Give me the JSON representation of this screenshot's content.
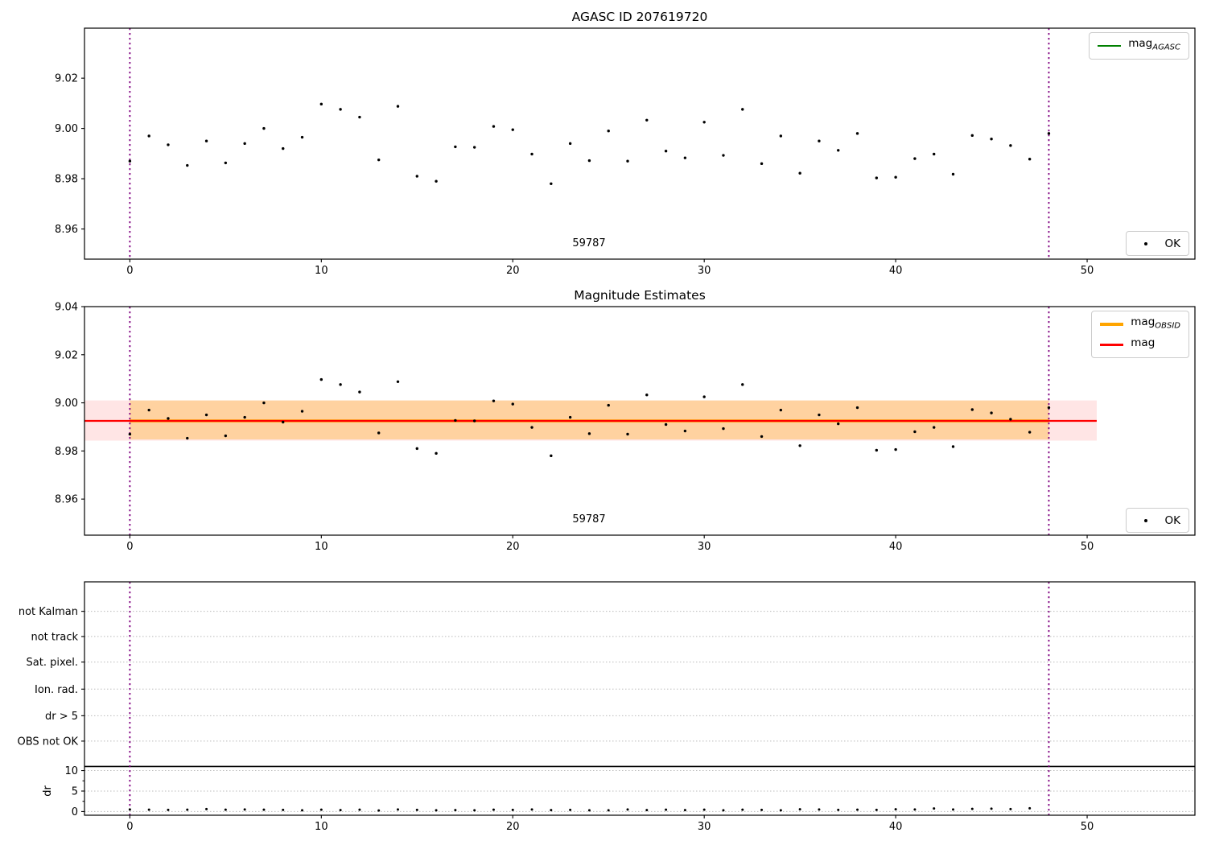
{
  "figure": {
    "background": "#ffffff"
  },
  "colors": {
    "mag_agasc_line": "#008000",
    "mag_obsid_line": "#ffa500",
    "mag_line": "#ff0000",
    "obsid_boundary_line": "#800080",
    "marker": "#000000",
    "mag_band": "rgba(255,0,0,0.10)",
    "obsid_band": "rgba(255,165,0,0.30)",
    "grid": "#bbbbbb",
    "separator": "#000000"
  },
  "chart_data": [
    {
      "id": "agasc-mag-panel",
      "type": "scatter",
      "title": "AGASC ID 207619720",
      "xlim": [
        -2.37,
        55.63
      ],
      "ylim": [
        8.948,
        9.0399
      ],
      "xticks": [
        0,
        10,
        20,
        30,
        40,
        50
      ],
      "xtick_labels": [
        "0",
        "10",
        "20",
        "30",
        "40",
        "50"
      ],
      "yticks": [
        9.02,
        9.0,
        8.98,
        8.96
      ],
      "ytick_labels": [
        "9.02",
        "9.00",
        "8.98",
        "8.96"
      ],
      "obsid_boundaries": [
        0,
        48
      ],
      "annotation": {
        "text": "59787",
        "x": 24
      },
      "legend": [
        {
          "label": "mag",
          "sub": "AGASC",
          "color": "#008000"
        }
      ],
      "ok_label": "OK",
      "x": [
        0,
        1,
        2,
        3,
        4,
        5,
        6,
        7,
        8,
        9,
        10,
        11,
        12,
        13,
        14,
        15,
        16,
        17,
        18,
        19,
        20,
        21,
        22,
        23,
        24,
        25,
        26,
        27,
        28,
        29,
        30,
        31,
        32,
        33,
        34,
        35,
        36,
        37,
        38,
        39,
        40,
        41,
        42,
        43,
        44,
        45,
        46,
        47,
        48
      ],
      "mag": [
        8.987,
        8.997,
        8.9935,
        8.9853,
        8.995,
        8.9863,
        8.994,
        9.0,
        8.992,
        8.9965,
        9.0097,
        9.0076,
        9.0045,
        8.9875,
        9.0088,
        8.981,
        8.979,
        8.9927,
        8.9925,
        9.0008,
        8.9995,
        8.9898,
        8.978,
        8.994,
        8.9872,
        8.999,
        8.987,
        9.0033,
        8.991,
        8.9883,
        9.0025,
        8.9893,
        9.0076,
        8.986,
        8.997,
        8.9822,
        8.995,
        8.9913,
        8.998,
        8.9803,
        8.9806,
        8.988,
        8.9898,
        8.9818,
        8.9972,
        8.9958,
        8.9932,
        8.9878,
        8.998
      ]
    },
    {
      "id": "magnitude-estimates-panel",
      "type": "scatter",
      "title": "Magnitude Estimates",
      "xlim": [
        -2.37,
        55.63
      ],
      "ylim": [
        8.945,
        9.04
      ],
      "xticks": [
        0,
        10,
        20,
        30,
        40,
        50
      ],
      "xtick_labels": [
        "0",
        "10",
        "20",
        "30",
        "40",
        "50"
      ],
      "yticks": [
        9.04,
        9.02,
        9.0,
        8.98,
        8.96
      ],
      "ytick_labels": [
        "9.04",
        "9.02",
        "9.00",
        "8.98",
        "8.96"
      ],
      "obsid_boundaries": [
        0,
        48
      ],
      "bands": [
        {
          "name": "mag-uncertainty-band",
          "x0": -2.37,
          "x1": 50.5,
          "y0": 8.9843,
          "y1": 9.001,
          "color_key": "mag_band"
        },
        {
          "name": "obsid-uncertainty-band",
          "x0": 0,
          "x1": 48,
          "y0": 8.9848,
          "y1": 9.001,
          "color_key": "obsid_band"
        }
      ],
      "hlines": [
        {
          "name": "mag-obsid-line",
          "y": 8.9925,
          "x0": 0,
          "x1": 48,
          "color_key": "mag_obsid_line",
          "width": 3.4
        },
        {
          "name": "mag-line",
          "y": 8.9925,
          "x0": -2.37,
          "x1": 50.5,
          "color_key": "mag_line",
          "width": 2.2
        }
      ],
      "annotation": {
        "text": "59787",
        "x": 24
      },
      "legend": [
        {
          "label": "mag",
          "sub": "OBSID",
          "color": "#ffa500"
        },
        {
          "label": "mag",
          "sub": "",
          "color": "#ff0000"
        }
      ],
      "ok_label": "OK",
      "x": [
        0,
        1,
        2,
        3,
        4,
        5,
        6,
        7,
        8,
        9,
        10,
        11,
        12,
        13,
        14,
        15,
        16,
        17,
        18,
        19,
        20,
        21,
        22,
        23,
        24,
        25,
        26,
        27,
        28,
        29,
        30,
        31,
        32,
        33,
        34,
        35,
        36,
        37,
        38,
        39,
        40,
        41,
        42,
        43,
        44,
        45,
        46,
        47,
        48
      ],
      "mag": [
        8.987,
        8.997,
        8.9935,
        8.9853,
        8.995,
        8.9863,
        8.994,
        9.0,
        8.992,
        8.9965,
        9.0097,
        9.0076,
        9.0045,
        8.9875,
        9.0088,
        8.981,
        8.979,
        8.9927,
        8.9925,
        9.0008,
        8.9995,
        8.9898,
        8.978,
        8.994,
        8.9872,
        8.999,
        8.987,
        9.0033,
        8.991,
        8.9883,
        9.0025,
        8.9893,
        9.0076,
        8.986,
        8.997,
        8.9822,
        8.995,
        8.9913,
        8.998,
        8.9803,
        8.9806,
        8.988,
        8.9898,
        8.9818,
        8.9972,
        8.9958,
        8.9932,
        8.9878,
        8.998
      ]
    },
    {
      "id": "flags-dr-panel",
      "type": "flags",
      "xlim": [
        -2.37,
        55.63
      ],
      "ylim": [
        -0.9,
        56.1
      ],
      "xticks": [
        0,
        10,
        20,
        30,
        40,
        50
      ],
      "xtick_labels": [
        "0",
        "10",
        "20",
        "30",
        "40",
        "50"
      ],
      "categories": [
        {
          "label": "not Kalman",
          "level": 48.9
        },
        {
          "label": "not track",
          "level": 42.75
        },
        {
          "label": "Sat. pixel.",
          "level": 36.5
        },
        {
          "label": "Ion. rad.",
          "level": 29.9
        },
        {
          "label": "dr > 5",
          "level": 23.4
        },
        {
          "label": "OBS not OK",
          "level": 17.2
        }
      ],
      "dr_ticks": [
        10,
        5,
        0
      ],
      "dr_tick_labels": [
        "10",
        "5",
        "0"
      ],
      "dr_minor_ticks": [
        7.5,
        2.5
      ],
      "separator_level": 11,
      "ylabel": "dr",
      "obsid_boundaries": [
        0,
        48
      ],
      "x": [
        0,
        1,
        2,
        3,
        4,
        5,
        6,
        7,
        8,
        9,
        10,
        11,
        12,
        13,
        14,
        15,
        16,
        17,
        18,
        19,
        20,
        21,
        22,
        23,
        24,
        25,
        26,
        27,
        28,
        29,
        30,
        31,
        32,
        33,
        34,
        35,
        36,
        37,
        38,
        39,
        40,
        41,
        42,
        43,
        44,
        45,
        46,
        47
      ],
      "dr": [
        0.5,
        0.45,
        0.4,
        0.45,
        0.6,
        0.45,
        0.5,
        0.45,
        0.4,
        0.3,
        0.45,
        0.35,
        0.45,
        0.25,
        0.5,
        0.4,
        0.3,
        0.35,
        0.3,
        0.45,
        0.4,
        0.5,
        0.35,
        0.4,
        0.3,
        0.3,
        0.5,
        0.35,
        0.45,
        0.35,
        0.45,
        0.3,
        0.45,
        0.4,
        0.3,
        0.55,
        0.5,
        0.4,
        0.45,
        0.4,
        0.55,
        0.5,
        0.75,
        0.5,
        0.65,
        0.7,
        0.6,
        0.8
      ]
    }
  ]
}
